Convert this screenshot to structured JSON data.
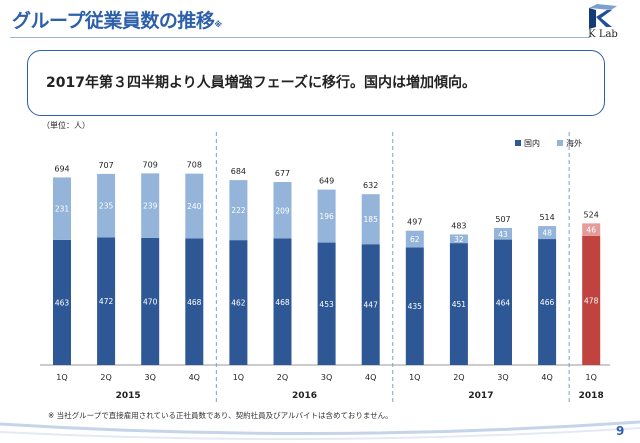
{
  "header": {
    "title": "グループ従業員数の推移",
    "title_note": "※",
    "logo_text": "K Lab"
  },
  "headline": "2017年第３四半期より人員増強フェーズに移行。国内は増加傾向。",
  "unit_label": "（単位：人）",
  "footnote": "※ 当社グループで直接雇用されている正社員数であり、契約社員及びアルバイトは含めておりません。",
  "page_number": "9",
  "colors": {
    "domestic": "#2e5895",
    "overseas": "#94b4da",
    "domestic_2018": "#c0433f",
    "overseas_2018": "#e49b99",
    "accent": "#2d5faa"
  },
  "chart_data": {
    "type": "bar",
    "stacked": true,
    "categories": [
      "1Q",
      "2Q",
      "3Q",
      "4Q",
      "1Q",
      "2Q",
      "3Q",
      "4Q",
      "1Q",
      "2Q",
      "3Q",
      "4Q",
      "1Q"
    ],
    "groups": [
      {
        "label": "2015",
        "count": 4
      },
      {
        "label": "2016",
        "count": 4
      },
      {
        "label": "2017",
        "count": 4
      },
      {
        "label": "2018",
        "count": 1
      }
    ],
    "series": [
      {
        "name": "国内",
        "values": [
          463,
          472,
          470,
          468,
          462,
          468,
          453,
          447,
          435,
          451,
          464,
          466,
          478
        ]
      },
      {
        "name": "海外",
        "values": [
          231,
          235,
          239,
          240,
          222,
          209,
          196,
          185,
          62,
          32,
          43,
          48,
          46
        ]
      }
    ],
    "totals": [
      694,
      707,
      709,
      708,
      684,
      677,
      649,
      632,
      497,
      483,
      507,
      514,
      524
    ],
    "ylim": [
      0,
      740
    ],
    "legend_position": "top-right",
    "grid": false
  }
}
